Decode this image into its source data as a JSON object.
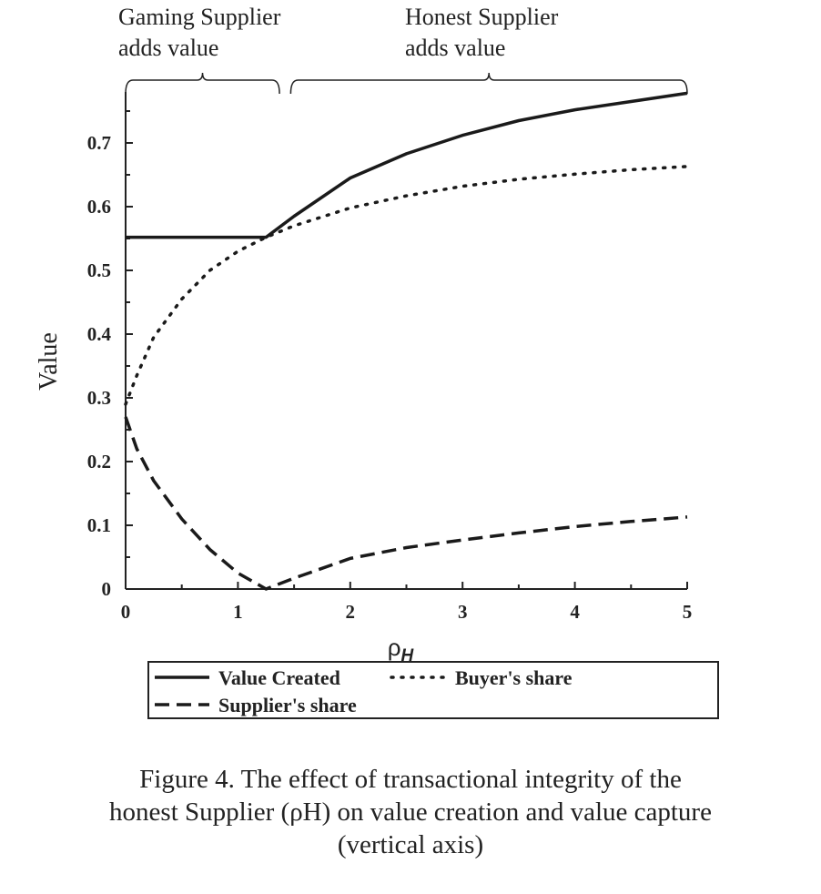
{
  "chart_data": {
    "type": "line",
    "title": "",
    "xlabel": "ρH",
    "ylabel": "Value",
    "xlim": [
      0,
      5
    ],
    "ylim": [
      0,
      0.78
    ],
    "xticks": [
      "0",
      "1",
      "2",
      "3",
      "4",
      "5"
    ],
    "yticks": [
      "0",
      "0.1",
      "0.2",
      "0.3",
      "0.4",
      "0.5",
      "0.6",
      "0.7"
    ],
    "regions": [
      {
        "label_line1": "Gaming Supplier",
        "label_line2": "adds value",
        "x_range": [
          0,
          1.37
        ]
      },
      {
        "label_line1": "Honest Supplier",
        "label_line2": "adds value",
        "x_range": [
          1.47,
          5
        ]
      }
    ],
    "series": [
      {
        "name": "Value Created",
        "style": "solid",
        "x": [
          0,
          0.5,
          1,
          1.25,
          1.5,
          2,
          2.5,
          3,
          3.5,
          4,
          4.5,
          5
        ],
        "y": [
          0.552,
          0.552,
          0.552,
          0.552,
          0.585,
          0.645,
          0.683,
          0.712,
          0.735,
          0.752,
          0.765,
          0.778
        ]
      },
      {
        "name": "Buyer's share",
        "style": "dotted",
        "x": [
          0,
          0.1,
          0.25,
          0.5,
          0.75,
          1,
          1.25,
          1.5,
          2,
          2.5,
          3,
          3.5,
          4,
          4.5,
          5
        ],
        "y": [
          0.29,
          0.335,
          0.395,
          0.455,
          0.5,
          0.53,
          0.552,
          0.57,
          0.598,
          0.617,
          0.632,
          0.643,
          0.651,
          0.658,
          0.663
        ]
      },
      {
        "name": "Supplier's share",
        "style": "dashed",
        "x": [
          0,
          0.1,
          0.25,
          0.5,
          0.75,
          1,
          1.25,
          1.5,
          2,
          2.5,
          3,
          3.5,
          4,
          4.5,
          5
        ],
        "y": [
          0.27,
          0.22,
          0.17,
          0.11,
          0.062,
          0.025,
          0,
          0.017,
          0.048,
          0.065,
          0.077,
          0.088,
          0.098,
          0.106,
          0.113
        ]
      }
    ],
    "legend": "bottom"
  },
  "caption": {
    "line1": "Figure 4.   The effect of transactional integrity of the",
    "line2": "honest Supplier (ρH) on value creation and value capture",
    "line3": "(vertical axis)"
  }
}
